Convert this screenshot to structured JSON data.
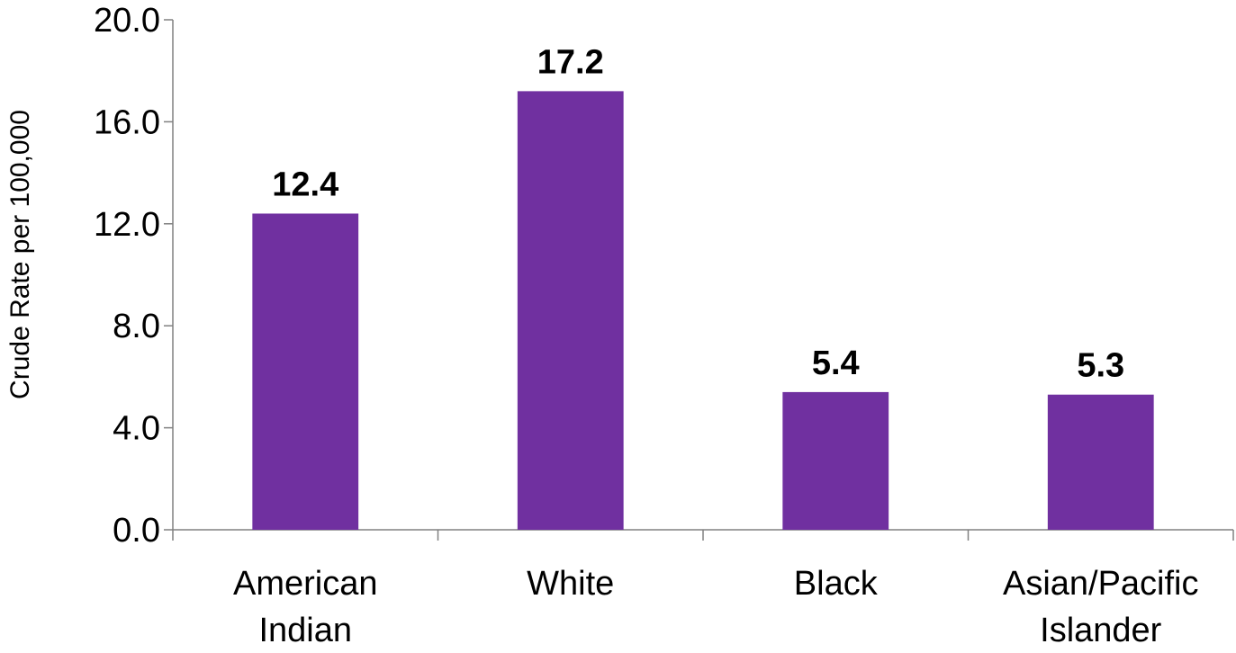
{
  "chart_data": {
    "type": "bar",
    "title": "",
    "xlabel": "",
    "ylabel": "Crude Rate per 100,000",
    "ylim": [
      0,
      20
    ],
    "yticks": [
      "0.0",
      "4.0",
      "8.0",
      "12.0",
      "16.0",
      "20.0"
    ],
    "categories": [
      [
        "American",
        "Indian"
      ],
      [
        "White"
      ],
      [
        "Black"
      ],
      [
        "Asian/Pacific",
        "Islander"
      ]
    ],
    "values": [
      12.4,
      17.2,
      5.4,
      5.3
    ],
    "data_labels": [
      "12.4",
      "17.2",
      "5.4",
      "5.3"
    ],
    "bar_color": "#7030A0",
    "axis_color": "#808080",
    "grid": false,
    "legend": "none"
  }
}
